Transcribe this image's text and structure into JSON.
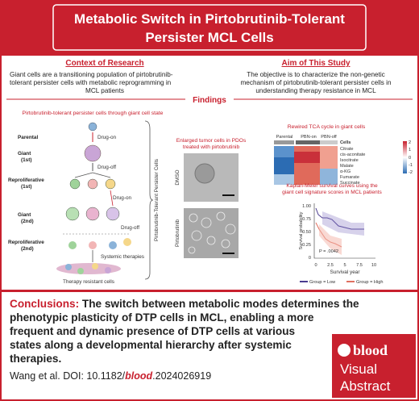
{
  "header": {
    "title_lines": [
      "Metabolic Switch in Pirtobrutinib-Tolerant",
      "Persister MCL Cells"
    ]
  },
  "context": {
    "heading": "Context of Research",
    "lines": [
      "Giant cells are a transitioning population of pirtobrutinib-",
      "tolerant persister cells with metabolic reprogramming in",
      "MCL patients"
    ]
  },
  "aim": {
    "heading": "Aim of This Study",
    "lines": [
      "The objective is to characterize the non-genetic",
      "mechanism of pirtobrutinib-tolerant persister cells in",
      "understanding therapy resistance in MCL"
    ]
  },
  "findings": {
    "heading": "Findings",
    "left": {
      "caption": "Pirtobrutinib-tolerant persister cells through giant cell state",
      "stages": [
        "Parental",
        "Giant",
        "(1st)",
        "Reproliferative",
        "(1st)",
        "Giant",
        "(2nd)",
        "Reproliferative",
        "(2nd)"
      ],
      "arrows": [
        "Drug-on",
        "Drug-off",
        "Drug-on",
        "Drug-off"
      ],
      "systemic": "Systemic therapies",
      "result": "Therapy resistant cells",
      "side_label": "Pirtobrutinib-Tolerant Persister Cells"
    },
    "middle": {
      "caption_lines": [
        "Enlarged tumor cells in PDOs",
        "treated with pirtobrutinib"
      ],
      "labels": [
        "DMSO",
        "Pirtobrutinib"
      ]
    },
    "heatmap": {
      "caption": "Rewired TCA cycle in giant cells",
      "columns": [
        "Parental",
        "PBN-on",
        "PBN-off"
      ],
      "legend_title": "Cells",
      "rows": [
        "Citrate",
        "cis-aconitate",
        "Isocitrate",
        "Malate",
        "α-KG",
        "Fumarate",
        "Succinate"
      ],
      "scale": [
        "2",
        "1",
        "0",
        "-1",
        "-2"
      ]
    },
    "km": {
      "caption_lines": [
        "Kaplan-Meier survival curves using the",
        "giant cell signature scores in MCL patients"
      ],
      "yticks": [
        "1.00",
        "0.75",
        "0.50",
        "0.25",
        "0"
      ],
      "xticks": [
        "0",
        "2.5",
        "5",
        "7.5",
        "10"
      ],
      "ylabel": "Survival probability",
      "xlabel": "Survival year",
      "pvalue": "P = .0042",
      "legend": [
        "Group = Low",
        "Group = High"
      ]
    }
  },
  "conclusions": {
    "heading": "Conclusions:",
    "lines": [
      "The switch between metabolic modes determines the",
      "phenotypic plasticity of DTP cells in MCL, enabling a more",
      "frequent and dynamic presence of DTP cells at various",
      "states along a developmental hierarchy after systemic",
      "therapies."
    ]
  },
  "citation": {
    "prefix": "Wang et al. DOI: 10.1182/",
    "journal": "blood",
    "suffix": ".2024026919"
  },
  "badge": {
    "logo": "blood",
    "lines": [
      "Visual",
      "Abstract"
    ]
  }
}
